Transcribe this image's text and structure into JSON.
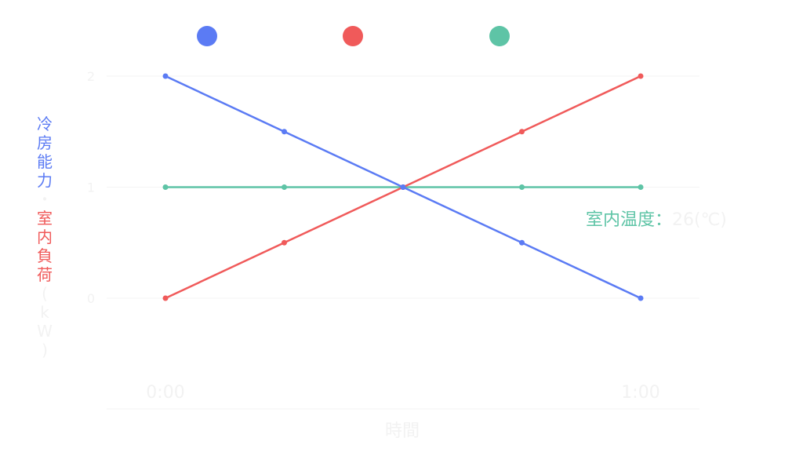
{
  "chart_data": {
    "type": "line",
    "legend_position": "top",
    "grid": true,
    "x": [
      "0:00",
      "",
      "",
      "",
      "1:00"
    ],
    "ylim": [
      0,
      2
    ],
    "yticks": [
      "0",
      "1",
      "2"
    ],
    "xlabel": "時間",
    "ylabel_parts": [
      {
        "text": "冷房能力",
        "color": "#5b7bf4"
      },
      {
        "text": "・",
        "color": "#f2f2f2"
      },
      {
        "text": "室内負荷",
        "color": "#f05a5a"
      },
      {
        "text": "(kW)",
        "color": "#f2f2f2"
      }
    ],
    "series": [
      {
        "name": "冷房能力",
        "color": "#5b7bf4",
        "values": [
          2,
          1.5,
          1,
          0.5,
          0
        ]
      },
      {
        "name": "室内負荷",
        "color": "#f05a5a",
        "values": [
          0,
          0.5,
          1,
          1.5,
          2
        ]
      },
      {
        "name": "室内温度",
        "color": "#5ec4a6",
        "values": [
          1,
          1,
          1,
          1,
          1
        ]
      }
    ],
    "annotation": {
      "label": "室内温度：",
      "value": "26(℃)",
      "color": "#5ec4a6"
    }
  }
}
